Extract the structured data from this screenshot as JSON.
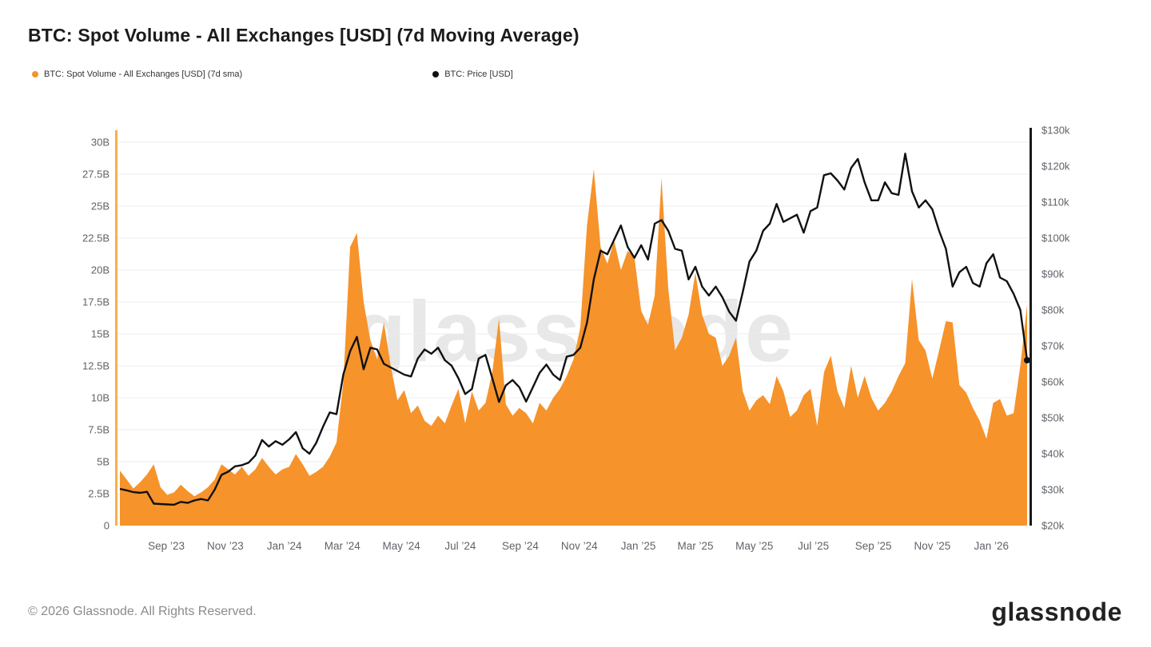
{
  "title": "BTC: Spot Volume - All Exchanges [USD] (7d Moving Average)",
  "legend": [
    {
      "label": "BTC: Spot Volume - All Exchanges [USD] (7d sma)",
      "color": "#F6932B"
    },
    {
      "label": "BTC: Price [USD]",
      "color": "#111111"
    }
  ],
  "watermark": "glassnode",
  "footer": {
    "copyright": "© 2026 Glassnode. All Rights Reserved.",
    "brand": "glassnode"
  },
  "colors": {
    "volume": "#F6932B",
    "price": "#111111",
    "grid": "#ededed",
    "axis_left": "#F9AE4B",
    "axis_right": "#1a1a1a",
    "tick_text": "#5f6368",
    "watermark": "#e8e8e8"
  },
  "chart_data": {
    "type": "area",
    "title": "BTC: Spot Volume - All Exchanges [USD] (7d Moving Average)",
    "start_date": "2023-07-15",
    "interval_days": 7,
    "series": [
      {
        "name": "BTC: Spot Volume - All Exchanges [USD] (7d sma)",
        "type": "area",
        "axis": "left",
        "unit": "billion USD",
        "values": [
          4.3,
          3.6,
          2.9,
          3.4,
          4.0,
          4.8,
          3.0,
          2.4,
          2.6,
          3.2,
          2.7,
          2.3,
          2.6,
          3.0,
          3.6,
          4.8,
          4.4,
          4.0,
          4.6,
          3.9,
          4.4,
          5.3,
          4.6,
          4.0,
          4.4,
          4.6,
          5.6,
          4.8,
          3.9,
          4.2,
          4.6,
          5.4,
          6.5,
          11.2,
          21.8,
          22.9,
          17.5,
          14.5,
          13.0,
          15.9,
          12.5,
          9.8,
          10.6,
          8.8,
          9.4,
          8.2,
          7.8,
          8.6,
          8.0,
          9.4,
          10.7,
          8.0,
          10.5,
          9.0,
          9.6,
          12.0,
          16.2,
          9.5,
          8.6,
          9.2,
          8.8,
          8.0,
          9.6,
          9.0,
          10.0,
          10.7,
          11.7,
          13.0,
          15.5,
          23.5,
          27.9,
          21.8,
          20.5,
          22.3,
          20.0,
          21.5,
          21.0,
          16.8,
          15.7,
          18.0,
          27.2,
          18.5,
          13.7,
          14.7,
          16.5,
          19.8,
          16.5,
          15.0,
          14.7,
          12.5,
          13.3,
          14.7,
          10.5,
          9.0,
          9.8,
          10.2,
          9.5,
          11.7,
          10.5,
          8.5,
          9.0,
          10.2,
          10.7,
          7.8,
          12.0,
          13.3,
          10.5,
          9.2,
          12.5,
          10.0,
          11.7,
          10.0,
          9.0,
          9.6,
          10.5,
          11.7,
          12.7,
          19.3,
          14.5,
          13.7,
          11.5,
          13.7,
          16.0,
          15.9,
          11.0,
          10.4,
          9.2,
          8.2,
          6.8,
          9.6,
          9.9,
          8.6,
          8.8,
          12.5,
          17.3
        ]
      },
      {
        "name": "BTC: Price [USD]",
        "type": "line",
        "axis": "right",
        "unit": "thousand USD",
        "end_marker": true,
        "values": [
          30.2,
          29.8,
          29.3,
          29.1,
          29.4,
          26.1,
          26.0,
          25.9,
          25.8,
          26.6,
          26.3,
          27.0,
          27.4,
          27.0,
          30.0,
          34.1,
          35.0,
          36.5,
          36.8,
          37.5,
          39.5,
          43.8,
          42.0,
          43.5,
          42.5,
          44.0,
          46.0,
          41.5,
          40.0,
          43.0,
          47.5,
          51.5,
          51.0,
          62.0,
          68.5,
          72.5,
          63.5,
          69.5,
          69.0,
          65.0,
          64.0,
          63.0,
          62.0,
          61.5,
          66.5,
          69.0,
          67.8,
          69.5,
          66.0,
          64.5,
          61.0,
          56.6,
          58.0,
          66.5,
          67.5,
          61.0,
          54.4,
          59.0,
          60.5,
          58.5,
          54.5,
          58.5,
          62.5,
          64.8,
          62.0,
          60.5,
          67.0,
          67.5,
          69.5,
          76.5,
          88.5,
          96.5,
          95.5,
          99.5,
          103.5,
          97.5,
          94.5,
          98.0,
          94.0,
          104.0,
          105.0,
          102.0,
          97.0,
          96.5,
          88.5,
          92.0,
          86.5,
          84.0,
          86.5,
          83.5,
          79.5,
          77.0,
          85.0,
          93.5,
          96.5,
          102.0,
          104.0,
          109.5,
          104.5,
          105.5,
          106.5,
          101.5,
          107.5,
          108.5,
          117.5,
          118.0,
          116.0,
          113.5,
          119.5,
          122.0,
          115.5,
          110.5,
          110.5,
          115.5,
          112.5,
          112.0,
          123.5,
          113.0,
          108.5,
          110.5,
          108.0,
          102.0,
          97.0,
          86.5,
          90.5,
          92.0,
          87.5,
          86.5,
          93.0,
          95.5,
          89.0,
          88.0,
          84.5,
          80.0,
          66.0
        ]
      }
    ],
    "y_left": {
      "min": 0,
      "max": 30,
      "step": 2.5,
      "labels": [
        "0",
        "2.5B",
        "5B",
        "7.5B",
        "10B",
        "12.5B",
        "15B",
        "17.5B",
        "20B",
        "22.5B",
        "25B",
        "27.5B",
        "30B"
      ]
    },
    "y_right": {
      "min": 20,
      "max": 130,
      "step": 10,
      "labels": [
        "$20k",
        "$30k",
        "$40k",
        "$50k",
        "$60k",
        "$70k",
        "$80k",
        "$90k",
        "$100k",
        "$110k",
        "$120k",
        "$130k"
      ]
    },
    "x_ticks": [
      {
        "date": "2023-09-01",
        "label": "Sep ’23"
      },
      {
        "date": "2023-11-01",
        "label": "Nov ’23"
      },
      {
        "date": "2024-01-01",
        "label": "Jan ’24"
      },
      {
        "date": "2024-03-01",
        "label": "Mar ’24"
      },
      {
        "date": "2024-05-01",
        "label": "May ’24"
      },
      {
        "date": "2024-07-01",
        "label": "Jul ’24"
      },
      {
        "date": "2024-09-01",
        "label": "Sep ’24"
      },
      {
        "date": "2024-11-01",
        "label": "Nov ’24"
      },
      {
        "date": "2025-01-01",
        "label": "Jan ’25"
      },
      {
        "date": "2025-03-01",
        "label": "Mar ’25"
      },
      {
        "date": "2025-05-01",
        "label": "May ’25"
      },
      {
        "date": "2025-07-01",
        "label": "Jul ’25"
      },
      {
        "date": "2025-09-01",
        "label": "Sep ’25"
      },
      {
        "date": "2025-11-01",
        "label": "Nov ’25"
      },
      {
        "date": "2026-01-01",
        "label": "Jan ’26"
      }
    ],
    "grid": "horizontal",
    "legend_position": "top-left"
  }
}
